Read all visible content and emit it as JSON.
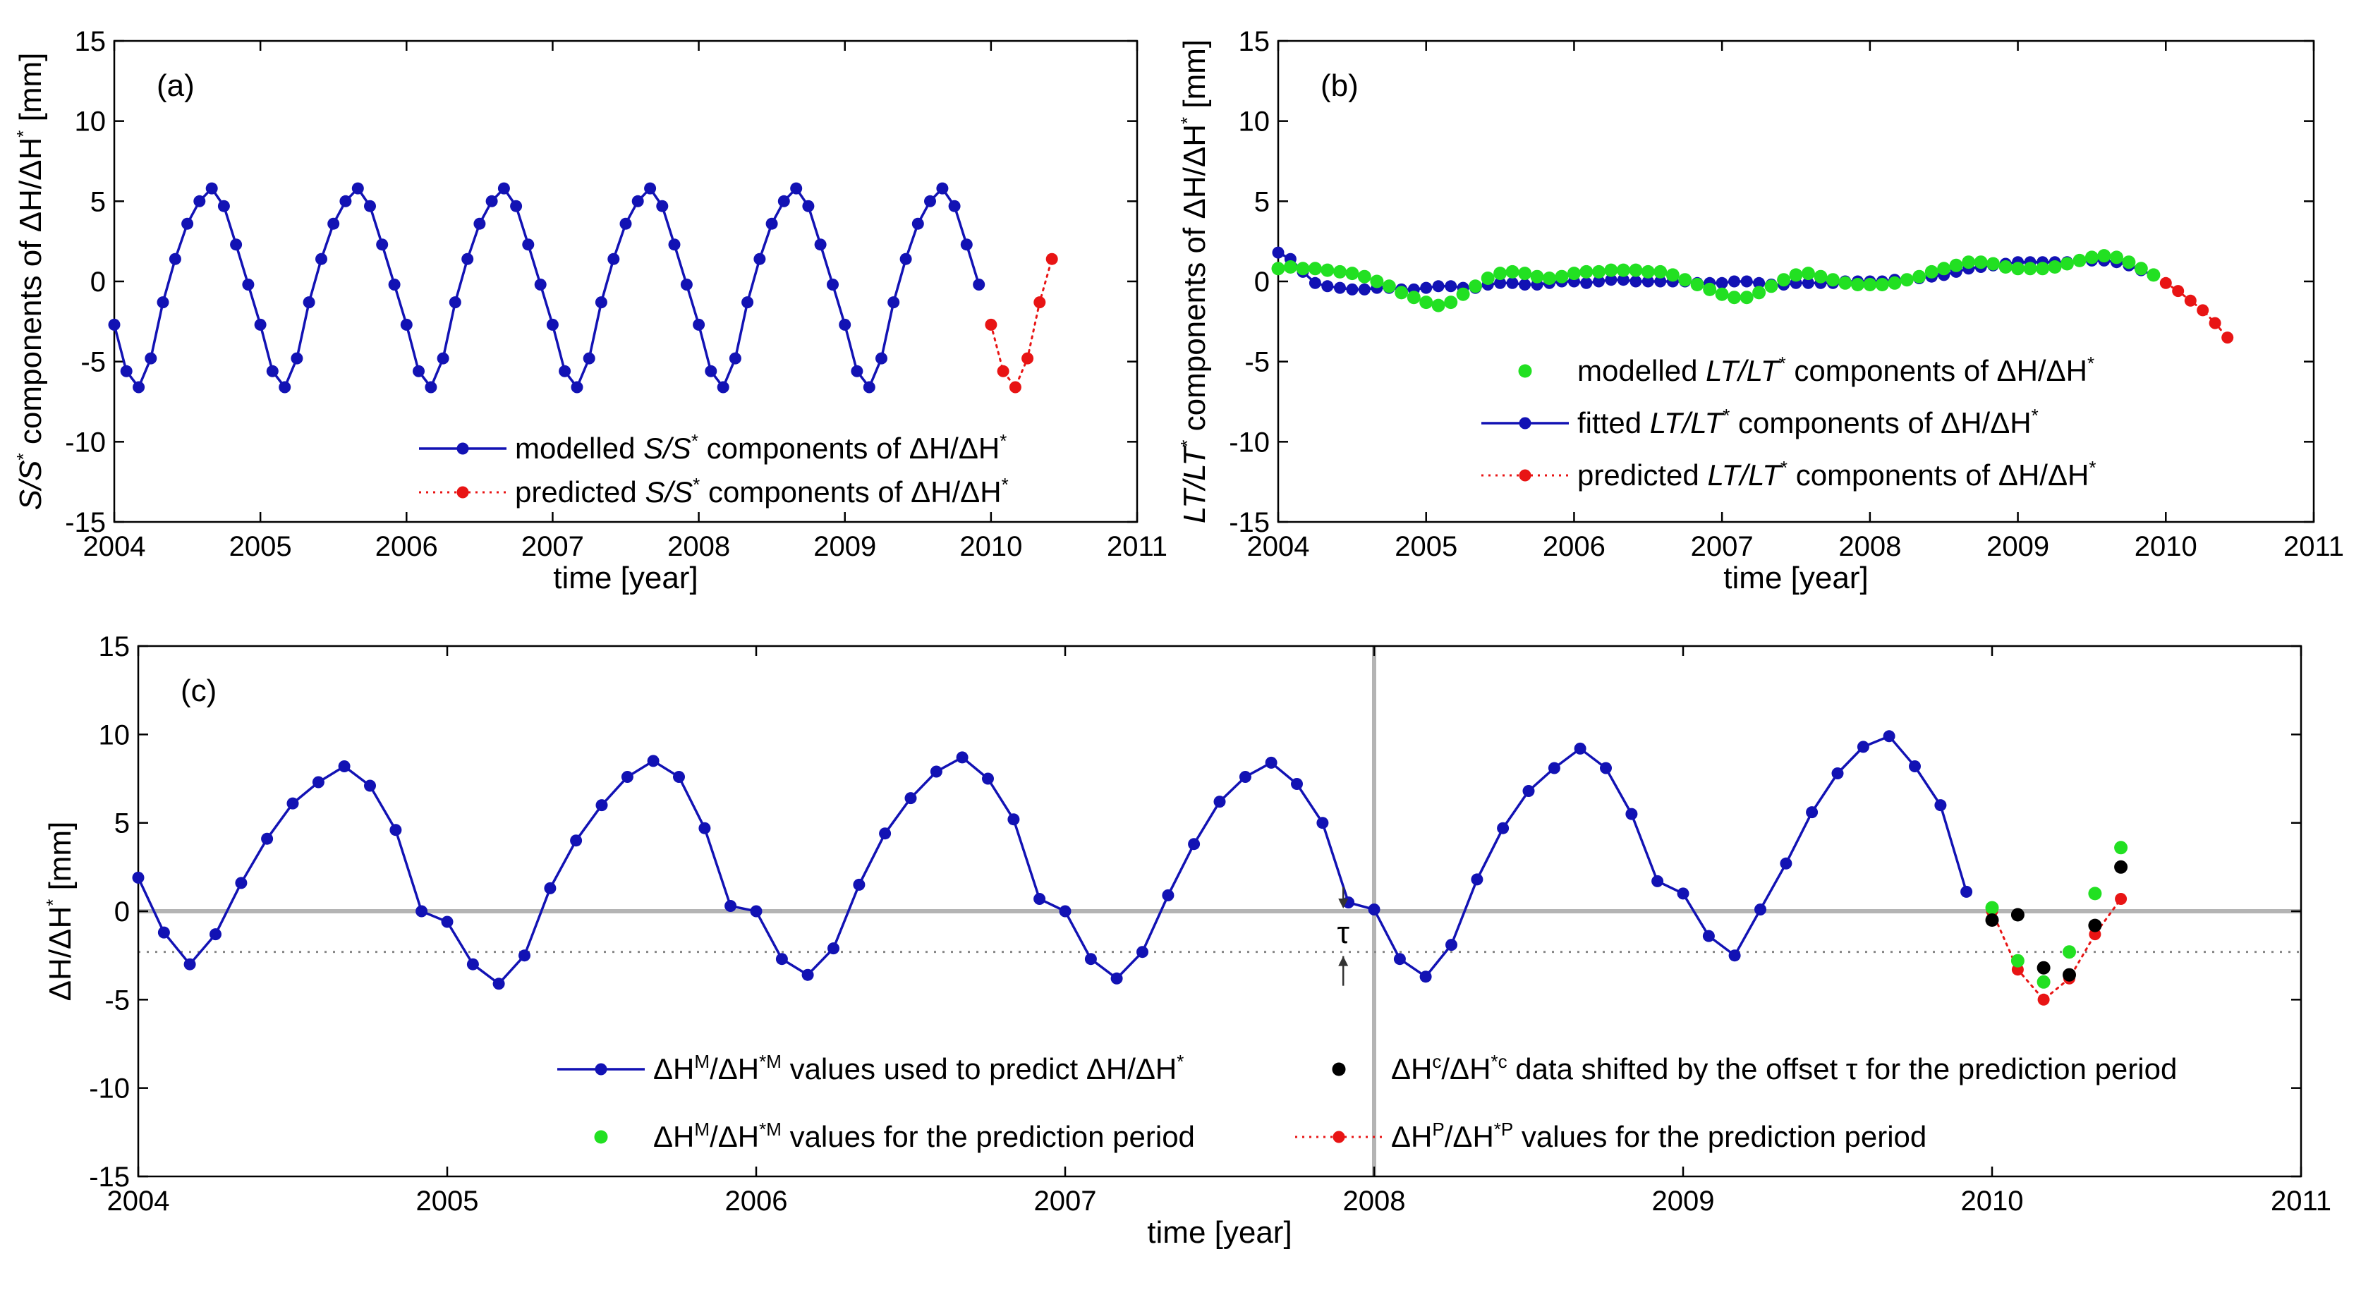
{
  "figure": {
    "colors": {
      "blue": "#1212b4",
      "red": "#e81414",
      "green": "#22e022",
      "black": "#000000",
      "gray": "#b4b4b4",
      "dotted": "#888888"
    }
  },
  "chart_data": [
    {
      "type": "line",
      "panel": "(a)",
      "xlabel": "time [year]",
      "ylabel": "S/S* components of ΔH/ΔH* [mm]",
      "xlim": [
        2004,
        2011
      ],
      "ylim": [
        -15,
        15
      ],
      "xticks": [
        "2004",
        "2005",
        "2006",
        "2007",
        "2008",
        "2009",
        "2010",
        "2011"
      ],
      "yticks": [
        "15",
        "10",
        "5",
        "0",
        "-5",
        "-10",
        "-15"
      ],
      "series": [
        {
          "name": "modelled S/S* components of ΔH/ΔH*",
          "style": "blue-line-dots",
          "x": [
            2004.0,
            2004.083,
            2004.167,
            2004.25,
            2004.333,
            2004.417,
            2004.5,
            2004.583,
            2004.667,
            2004.75,
            2004.833,
            2004.917
          ],
          "y": [
            -2.7,
            -5.6,
            -6.6,
            -4.8,
            -1.3,
            1.4,
            3.6,
            5.0,
            5.8,
            4.7,
            2.3,
            -0.2
          ],
          "periodic": 1.0,
          "x_end": 2009.917
        },
        {
          "name": "predicted S/S* components of ΔH/ΔH*",
          "style": "red-dotted-dots",
          "x": [
            2010.0,
            2010.083,
            2010.167,
            2010.25,
            2010.333,
            2010.417
          ],
          "y": [
            -2.7,
            -5.6,
            -6.6,
            -4.8,
            -1.3,
            1.4
          ]
        }
      ],
      "legend": [
        {
          "pre": "modelled ",
          "var": "S/S",
          "star": "*",
          "post": " components of ΔH/ΔH",
          "star2": "*"
        },
        {
          "pre": "predicted ",
          "var": "S/S",
          "star": "*",
          "post": " components of ΔH/ΔH",
          "star2": "*"
        }
      ]
    },
    {
      "type": "line",
      "panel": "(b)",
      "xlabel": "time [year]",
      "ylabel": "LT/LT* components of ΔH/ΔH* [mm]",
      "xlim": [
        2004,
        2011
      ],
      "ylim": [
        -15,
        15
      ],
      "xticks": [
        "2004",
        "2005",
        "2006",
        "2007",
        "2008",
        "2009",
        "2010",
        "2011"
      ],
      "yticks": [
        "15",
        "10",
        "5",
        "0",
        "-5",
        "-10",
        "-15"
      ],
      "series": [
        {
          "name": "modelled LT/LT* components of ΔH/ΔH*",
          "style": "green-dots",
          "x": [
            2004.0,
            2004.083,
            2004.167,
            2004.25,
            2004.333,
            2004.417,
            2004.5,
            2004.583,
            2004.667,
            2004.75,
            2004.833,
            2004.917,
            2005.0,
            2005.083,
            2005.167,
            2005.25,
            2005.333,
            2005.417,
            2005.5,
            2005.583,
            2005.667,
            2005.75,
            2005.833,
            2005.917,
            2006.0,
            2006.083,
            2006.167,
            2006.25,
            2006.333,
            2006.417,
            2006.5,
            2006.583,
            2006.667,
            2006.75,
            2006.833,
            2006.917,
            2007.0,
            2007.083,
            2007.167,
            2007.25,
            2007.333,
            2007.417,
            2007.5,
            2007.583,
            2007.667,
            2007.75,
            2007.833,
            2007.917,
            2008.0,
            2008.083,
            2008.167,
            2008.25,
            2008.333,
            2008.417,
            2008.5,
            2008.583,
            2008.667,
            2008.75,
            2008.833,
            2008.917,
            2009.0,
            2009.083,
            2009.167,
            2009.25,
            2009.333,
            2009.417,
            2009.5,
            2009.583,
            2009.667,
            2009.75,
            2009.833,
            2009.917
          ],
          "y": [
            0.8,
            0.9,
            0.8,
            0.8,
            0.7,
            0.6,
            0.5,
            0.3,
            0.0,
            -0.3,
            -0.7,
            -1.0,
            -1.3,
            -1.5,
            -1.3,
            -0.8,
            -0.3,
            0.2,
            0.5,
            0.6,
            0.5,
            0.3,
            0.2,
            0.3,
            0.5,
            0.6,
            0.6,
            0.7,
            0.7,
            0.7,
            0.6,
            0.6,
            0.4,
            0.1,
            -0.2,
            -0.5,
            -0.8,
            -1.0,
            -1.0,
            -0.7,
            -0.3,
            0.1,
            0.4,
            0.5,
            0.3,
            0.1,
            -0.1,
            -0.2,
            -0.2,
            -0.2,
            -0.1,
            0.1,
            0.3,
            0.6,
            0.8,
            1.0,
            1.2,
            1.2,
            1.1,
            0.9,
            0.8,
            0.8,
            0.8,
            0.9,
            1.1,
            1.3,
            1.5,
            1.6,
            1.5,
            1.2,
            0.8,
            0.4
          ]
        },
        {
          "name": "fitted LT/LT* components of ΔH/ΔH*",
          "style": "blue-line-dots",
          "x": [
            2004.0,
            2004.083,
            2004.167,
            2004.25,
            2004.333,
            2004.417,
            2004.5,
            2004.583,
            2004.667,
            2004.75,
            2004.833,
            2004.917,
            2005.0,
            2005.083,
            2005.167,
            2005.25,
            2005.333,
            2005.417,
            2005.5,
            2005.583,
            2005.667,
            2005.75,
            2005.833,
            2005.917,
            2006.0,
            2006.083,
            2006.167,
            2006.25,
            2006.333,
            2006.417,
            2006.5,
            2006.583,
            2006.667,
            2006.75,
            2006.833,
            2006.917,
            2007.0,
            2007.083,
            2007.167,
            2007.25,
            2007.333,
            2007.417,
            2007.5,
            2007.583,
            2007.667,
            2007.75,
            2007.833,
            2007.917,
            2008.0,
            2008.083,
            2008.167,
            2008.25,
            2008.333,
            2008.417,
            2008.5,
            2008.583,
            2008.667,
            2008.75,
            2008.833,
            2008.917,
            2009.0,
            2009.083,
            2009.167,
            2009.25,
            2009.333,
            2009.417,
            2009.5,
            2009.583,
            2009.667,
            2009.75,
            2009.833,
            2009.917
          ],
          "y": [
            1.8,
            1.4,
            0.6,
            -0.1,
            -0.3,
            -0.4,
            -0.5,
            -0.5,
            -0.4,
            -0.4,
            -0.5,
            -0.5,
            -0.4,
            -0.3,
            -0.3,
            -0.4,
            -0.4,
            -0.2,
            -0.1,
            -0.1,
            -0.2,
            -0.2,
            -0.1,
            0.0,
            0.0,
            -0.1,
            0.0,
            0.1,
            0.1,
            0.0,
            0.0,
            0.0,
            0.0,
            0.0,
            -0.1,
            -0.1,
            -0.1,
            0.0,
            0.0,
            -0.1,
            -0.2,
            -0.2,
            -0.1,
            -0.1,
            -0.1,
            -0.1,
            0.0,
            0.0,
            0.0,
            0.0,
            0.1,
            0.1,
            0.2,
            0.3,
            0.4,
            0.6,
            0.8,
            0.9,
            1.0,
            1.1,
            1.2,
            1.2,
            1.2,
            1.2,
            1.2,
            1.3,
            1.3,
            1.3,
            1.2,
            1.0,
            0.7,
            0.4
          ]
        },
        {
          "name": "predicted LT/LT* components of ΔH/ΔH*",
          "style": "red-dotted-dots",
          "x": [
            2010.0,
            2010.083,
            2010.167,
            2010.25,
            2010.333,
            2010.417
          ],
          "y": [
            -0.1,
            -0.6,
            -1.2,
            -1.8,
            -2.6,
            -3.5
          ]
        }
      ],
      "legend": [
        {
          "pre": "modelled ",
          "var": "LT/LT",
          "star": "*",
          "post": " components of ΔH/ΔH",
          "star2": "*"
        },
        {
          "pre": "fitted ",
          "var": "LT/LT",
          "star": "*",
          "post": " components of ΔH/ΔH",
          "star2": "*"
        },
        {
          "pre": "predicted ",
          "var": "LT/LT",
          "star": "*",
          "post": " components of ΔH/ΔH",
          "star2": "*"
        }
      ]
    },
    {
      "type": "line",
      "panel": "(c)",
      "xlabel": "time [year]",
      "ylabel": "ΔH/ΔH* [mm]",
      "xlim": [
        2004,
        2011
      ],
      "ylim": [
        -15,
        15
      ],
      "xticks": [
        "2004",
        "2005",
        "2006",
        "2007",
        "2008",
        "2009",
        "2010",
        "2011"
      ],
      "yticks": [
        "15",
        "10",
        "5",
        "0",
        "-5",
        "-10",
        "-15"
      ],
      "vline_x": 2008,
      "offset_line_y": -2.3,
      "tau_label": "τ",
      "series": [
        {
          "name": "ΔH^M/ΔH*^M values used to predict ΔH/ΔH*",
          "style": "blue-line-dots",
          "x": [
            2004.0,
            2004.083,
            2004.167,
            2004.25,
            2004.333,
            2004.417,
            2004.5,
            2004.583,
            2004.667,
            2004.75,
            2004.833,
            2004.917,
            2005.0,
            2005.083,
            2005.167,
            2005.25,
            2005.333,
            2005.417,
            2005.5,
            2005.583,
            2005.667,
            2005.75,
            2005.833,
            2005.917,
            2006.0,
            2006.083,
            2006.167,
            2006.25,
            2006.333,
            2006.417,
            2006.5,
            2006.583,
            2006.667,
            2006.75,
            2006.833,
            2006.917,
            2007.0,
            2007.083,
            2007.167,
            2007.25,
            2007.333,
            2007.417,
            2007.5,
            2007.583,
            2007.667,
            2007.75,
            2007.833,
            2007.917,
            2008.0,
            2008.083,
            2008.167,
            2008.25,
            2008.333,
            2008.417,
            2008.5,
            2008.583,
            2008.667,
            2008.75,
            2008.833,
            2008.917,
            2009.0,
            2009.083,
            2009.167,
            2009.25,
            2009.333,
            2009.417,
            2009.5,
            2009.583,
            2009.667,
            2009.75,
            2009.833,
            2009.917
          ],
          "y": [
            1.9,
            -1.2,
            -3.0,
            -1.3,
            1.6,
            4.1,
            6.1,
            7.3,
            8.2,
            7.1,
            4.6,
            0.0,
            -0.6,
            -3.0,
            -4.1,
            -2.5,
            1.3,
            4.0,
            6.0,
            7.6,
            8.5,
            7.6,
            4.7,
            0.3,
            0.0,
            -2.7,
            -3.6,
            -2.1,
            1.5,
            4.4,
            6.4,
            7.9,
            8.7,
            7.5,
            5.2,
            0.7,
            0.0,
            -2.7,
            -3.8,
            -2.3,
            0.9,
            3.8,
            6.2,
            7.6,
            8.4,
            7.2,
            5.0,
            0.5,
            0.1,
            -2.7,
            -3.7,
            -1.9,
            1.8,
            4.7,
            6.8,
            8.1,
            9.2,
            8.1,
            5.5,
            1.7,
            1.0,
            -1.4,
            -2.5,
            0.1,
            2.7,
            5.6,
            7.8,
            9.3,
            9.9,
            8.2,
            6.0,
            1.1
          ]
        },
        {
          "name": "ΔH^M/ΔH*^M values for the prediction period",
          "style": "green-dots",
          "x": [
            2010.0,
            2010.083,
            2010.167,
            2010.25,
            2010.333,
            2010.417
          ],
          "y": [
            0.2,
            -2.8,
            -4.0,
            -2.3,
            1.0,
            3.6
          ]
        },
        {
          "name": "ΔH^c/ΔH*^c data shifted by the offset τ for the prediction period",
          "style": "black-dots",
          "x": [
            2010.0,
            2010.083,
            2010.167,
            2010.25,
            2010.333,
            2010.417
          ],
          "y": [
            -0.5,
            -0.2,
            -3.2,
            -3.6,
            -0.8,
            2.5
          ]
        },
        {
          "name": "ΔH^P/ΔH*^P values for the prediction period",
          "style": "red-dotted-dots",
          "x": [
            2010.0,
            2010.083,
            2010.167,
            2010.25,
            2010.333,
            2010.417
          ],
          "y": [
            0.0,
            -3.3,
            -5.0,
            -3.8,
            -1.3,
            0.7
          ]
        }
      ],
      "legend": [
        {
          "sym": "ΔH",
          "sup1": "M",
          "mid": "/ΔH",
          "sup2": "*M",
          "post": " values used to predict ΔH/ΔH",
          "tail": "*"
        },
        {
          "sym": "ΔH",
          "sup1": "c",
          "mid": "/ΔH",
          "sup2": "*c",
          "post": " data shifted by the offset τ for the prediction period",
          "tail": ""
        },
        {
          "sym": "ΔH",
          "sup1": "M",
          "mid": "/ΔH",
          "sup2": "*M",
          "post": " values for the prediction period",
          "tail": ""
        },
        {
          "sym": "ΔH",
          "sup1": "P",
          "mid": "/ΔH",
          "sup2": "*P",
          "post": " values for the prediction period",
          "tail": ""
        }
      ]
    }
  ]
}
